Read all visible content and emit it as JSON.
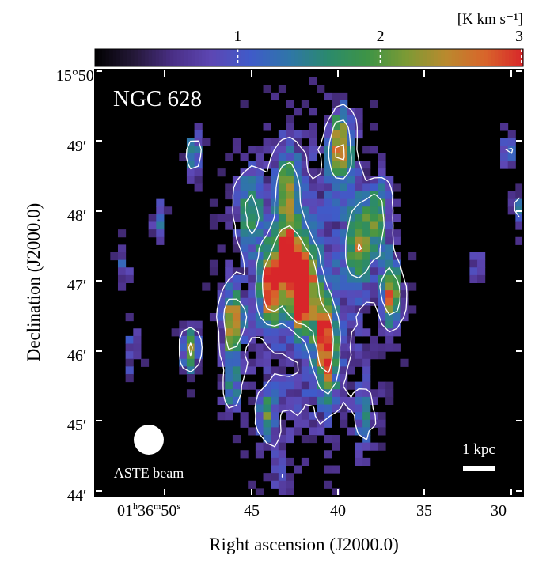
{
  "chart_data": {
    "type": "heatmap",
    "title": "NGC 628",
    "xlabel": "Right ascension (J2000.0)",
    "ylabel": "Declination (J2000.0)",
    "colorbar": {
      "unit_label": "[K km s⁻¹]",
      "range": [
        0,
        3
      ],
      "ticks": [
        1,
        2,
        3
      ],
      "tick_labels": [
        "1",
        "2",
        "3"
      ],
      "colormap": [
        "#000000",
        "#241838",
        "#4a2f86",
        "#5d47b4",
        "#3f5bc9",
        "#2f76a8",
        "#2b8a6c",
        "#3e9446",
        "#7c9a35",
        "#b98a2e",
        "#d8662b",
        "#d8262a"
      ]
    },
    "x_axis": {
      "ticks": [
        "01h36m50s",
        "45",
        "40",
        "35",
        "30"
      ],
      "first_tick": {
        "h": "01",
        "hsup": "h",
        "m": "36",
        "msup": "m",
        "s": "50",
        "ssup": "s"
      },
      "range_s": [
        52.0,
        29.0
      ]
    },
    "y_axis": {
      "ticks": [
        "15°50′",
        "49′",
        "48′",
        "47′",
        "46′",
        "45′",
        "44′"
      ],
      "range_arcmin": [
        43.95,
        50.05
      ]
    },
    "contour_levels": [
      0.7,
      1.4,
      2.1
    ],
    "peaks": [
      {
        "ra": 38.8,
        "dec": 48.95,
        "amp": 2.3,
        "w": 0.9
      },
      {
        "ra": 41.7,
        "dec": 47.35,
        "amp": 2.8,
        "w": 0.7
      },
      {
        "ra": 40.8,
        "dec": 47.05,
        "amp": 2.6,
        "w": 0.9
      },
      {
        "ra": 42.6,
        "dec": 46.95,
        "amp": 2.4,
        "w": 0.9
      },
      {
        "ra": 41.0,
        "dec": 46.75,
        "amp": 2.5,
        "w": 0.6
      },
      {
        "ra": 44.6,
        "dec": 46.45,
        "amp": 2.5,
        "w": 0.8
      },
      {
        "ra": 36.1,
        "dec": 46.85,
        "amp": 2.3,
        "w": 0.8
      },
      {
        "ra": 39.7,
        "dec": 46.3,
        "amp": 2.0,
        "w": 0.8
      },
      {
        "ra": 37.8,
        "dec": 47.6,
        "amp": 1.8,
        "w": 1.0
      },
      {
        "ra": 36.7,
        "dec": 47.95,
        "amp": 1.6,
        "w": 0.9
      },
      {
        "ra": 46.9,
        "dec": 46.05,
        "amp": 2.0,
        "w": 0.7
      },
      {
        "ra": 43.7,
        "dec": 48.05,
        "amp": 1.5,
        "w": 1.0
      },
      {
        "ra": 42.8,
        "dec": 45.1,
        "amp": 1.6,
        "w": 0.7
      },
      {
        "ra": 46.7,
        "dec": 48.85,
        "amp": 1.5,
        "w": 0.6
      },
      {
        "ra": 48.6,
        "dec": 47.95,
        "amp": 1.4,
        "w": 0.5
      },
      {
        "ra": 44.7,
        "dec": 45.55,
        "amp": 1.5,
        "w": 0.7
      },
      {
        "ra": 41.7,
        "dec": 48.3,
        "amp": 1.5,
        "w": 1.1
      },
      {
        "ra": 39.5,
        "dec": 45.7,
        "amp": 1.4,
        "w": 0.8
      },
      {
        "ra": 29.8,
        "dec": 48.95,
        "amp": 1.3,
        "w": 0.6
      },
      {
        "ra": 29.3,
        "dec": 48.0,
        "amp": 1.5,
        "w": 0.5
      },
      {
        "ra": 37.5,
        "dec": 45.05,
        "amp": 1.0,
        "w": 0.8
      },
      {
        "ra": 50.5,
        "dec": 47.2,
        "amp": 1.0,
        "w": 0.6
      },
      {
        "ra": 31.5,
        "dec": 47.2,
        "amp": 0.9,
        "w": 0.6
      },
      {
        "ra": 42.0,
        "dec": 44.3,
        "amp": 1.0,
        "w": 0.6
      },
      {
        "ra": 50.0,
        "dec": 46.0,
        "amp": 1.0,
        "w": 0.7
      }
    ],
    "annotations": {
      "beam_label": "ASTE beam",
      "scalebar_label": "1 kpc"
    }
  },
  "colors": {
    "background": "#000000",
    "contour": "#ffffff",
    "frame": "#000000"
  }
}
